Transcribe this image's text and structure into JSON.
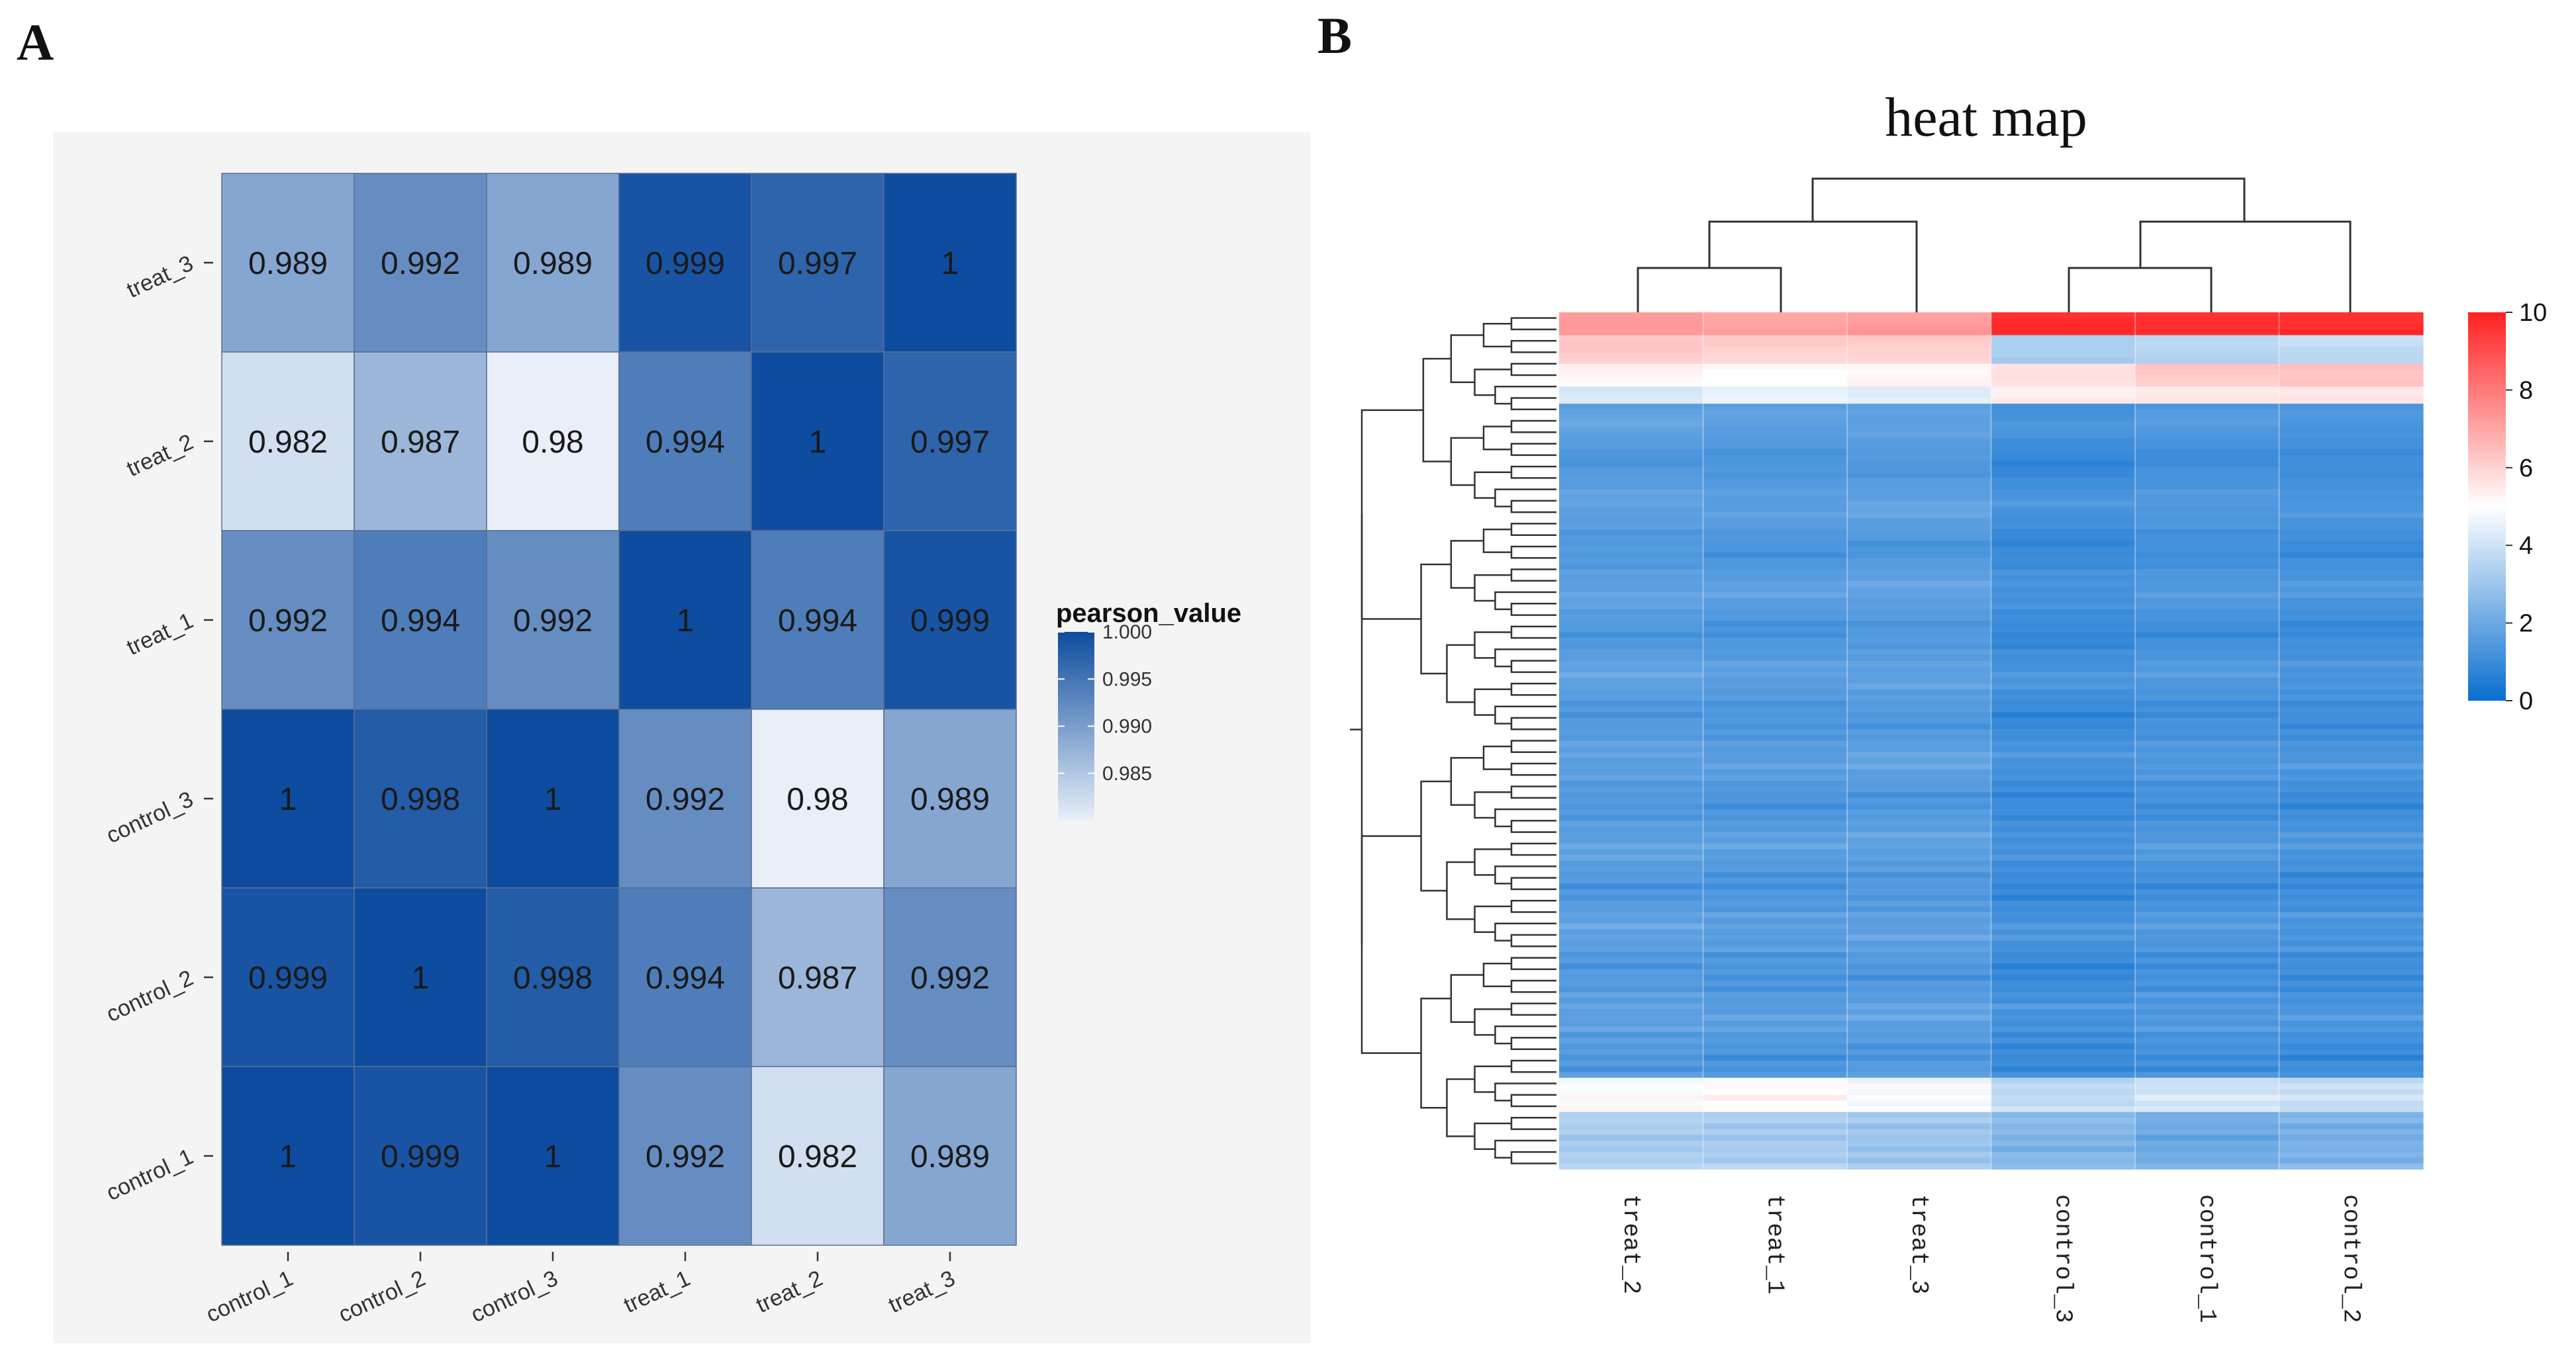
{
  "panels": {
    "a_label": "A",
    "b_label": "B"
  },
  "chart_data": [
    {
      "type": "heatmap",
      "title": "",
      "x_categories": [
        "control_1",
        "control_2",
        "control_3",
        "treat_1",
        "treat_2",
        "treat_3"
      ],
      "y_categories_bottom_to_top": [
        "control_1",
        "control_2",
        "control_3",
        "treat_1",
        "treat_2",
        "treat_3"
      ],
      "rows_top_to_bottom": [
        {
          "label": "treat_3",
          "values": [
            0.989,
            0.992,
            0.989,
            0.999,
            0.997,
            1
          ]
        },
        {
          "label": "treat_2",
          "values": [
            0.982,
            0.987,
            0.98,
            0.994,
            1,
            0.997
          ]
        },
        {
          "label": "treat_1",
          "values": [
            0.992,
            0.994,
            0.992,
            1,
            0.994,
            0.999
          ]
        },
        {
          "label": "control_3",
          "values": [
            1,
            0.998,
            1,
            0.992,
            0.98,
            0.989
          ]
        },
        {
          "label": "control_2",
          "values": [
            0.999,
            1,
            0.998,
            0.994,
            0.987,
            0.992
          ]
        },
        {
          "label": "control_1",
          "values": [
            1,
            0.999,
            1,
            0.992,
            0.982,
            0.989
          ]
        }
      ],
      "legend": {
        "title": "pearson_value",
        "ticks": [
          "1.000",
          "0.995",
          "0.990",
          "0.985"
        ],
        "tick_values": [
          1.0,
          0.995,
          0.99,
          0.985
        ],
        "range": [
          0.98,
          1.0
        ],
        "low_color": "#e8eff9",
        "high_color": "#0d4c9e"
      }
    },
    {
      "type": "heatmap",
      "title": "heat map",
      "columns": [
        "treat_2",
        "treat_1",
        "treat_3",
        "control_3",
        "control_1",
        "control_2"
      ],
      "colorbar": {
        "ticks": [
          "10",
          "8",
          "6",
          "4",
          "2",
          "0"
        ],
        "tick_values": [
          10,
          8,
          6,
          4,
          2,
          0
        ],
        "range": [
          0,
          10
        ]
      },
      "colors": {
        "low": "#0a6fd0",
        "mid": "#ffffff",
        "high": "#ff2020"
      },
      "row_groups": [
        {
          "rows": 4,
          "values": [
            7.2,
            7.0,
            7.1,
            9.6,
            9.6,
            9.6
          ]
        },
        {
          "rows": 5,
          "values": [
            6.1,
            5.9,
            6.0,
            3.2,
            3.4,
            3.6
          ]
        },
        {
          "rows": 4,
          "values": [
            5.4,
            5.3,
            5.4,
            5.8,
            6.4,
            6.6
          ]
        },
        {
          "rows": 3,
          "values": [
            4.3,
            4.6,
            4.4,
            5.5,
            5.6,
            5.6
          ]
        },
        {
          "rows": 118,
          "values": [
            1.6,
            1.5,
            1.6,
            1.1,
            1.3,
            1.2
          ]
        },
        {
          "rows": 6,
          "values": [
            4.8,
            4.9,
            4.7,
            3.6,
            3.9,
            3.7
          ]
        },
        {
          "rows": 10,
          "values": [
            3.4,
            3.3,
            3.1,
            2.6,
            2.2,
            2.4
          ]
        }
      ]
    }
  ]
}
